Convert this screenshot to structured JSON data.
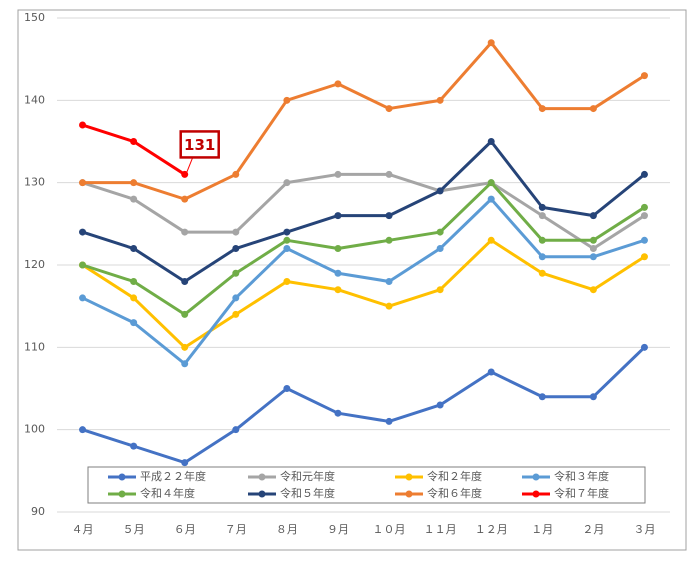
{
  "chart_data": {
    "type": "line",
    "categories": [
      "４月",
      "５月",
      "６月",
      "７月",
      "８月",
      "９月",
      "１０月",
      "１１月",
      "１２月",
      "１月",
      "２月",
      "３月"
    ],
    "series": [
      {
        "name": "平成２２年度",
        "color": "#4472c4",
        "values": [
          100,
          98,
          96,
          100,
          105,
          102,
          101,
          103,
          107,
          104,
          104,
          110
        ]
      },
      {
        "name": "令和元年度",
        "color": "#a5a5a5",
        "values": [
          130,
          128,
          124,
          124,
          130,
          131,
          131,
          129,
          130,
          126,
          122,
          126
        ]
      },
      {
        "name": "令和２年度",
        "color": "#ffc000",
        "values": [
          120,
          116,
          110,
          114,
          118,
          117,
          115,
          117,
          123,
          119,
          117,
          121
        ]
      },
      {
        "name": "令和３年度",
        "color": "#5b9bd5",
        "values": [
          116,
          113,
          108,
          116,
          122,
          119,
          118,
          122,
          128,
          121,
          121,
          123
        ]
      },
      {
        "name": "令和４年度",
        "color": "#70ad47",
        "values": [
          120,
          118,
          114,
          119,
          123,
          122,
          123,
          124,
          130,
          123,
          123,
          127
        ]
      },
      {
        "name": "令和５年度",
        "color": "#264478",
        "values": [
          124,
          122,
          118,
          122,
          124,
          126,
          126,
          129,
          135,
          127,
          126,
          131
        ]
      },
      {
        "name": "令和６年度",
        "color": "#ed7d31",
        "values": [
          130,
          130,
          128,
          131,
          140,
          142,
          139,
          140,
          147,
          139,
          139,
          143
        ]
      },
      {
        "name": "令和７年度",
        "color": "#ff0000",
        "values": [
          137,
          135,
          131,
          null,
          null,
          null,
          null,
          null,
          null,
          null,
          null,
          null
        ]
      }
    ],
    "ylim": [
      90,
      150
    ],
    "yticks": [
      90,
      100,
      110,
      120,
      130,
      140,
      150
    ],
    "grid": true,
    "legend": "bottom"
  }
}
